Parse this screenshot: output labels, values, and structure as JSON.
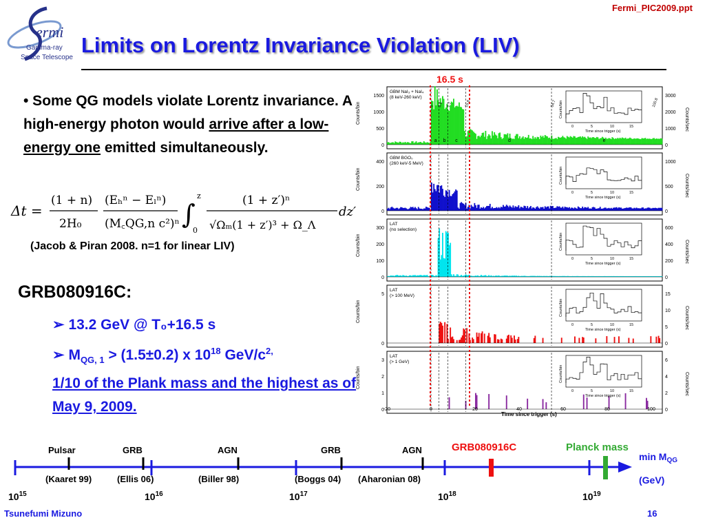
{
  "header": {
    "filename": "Fermi_PIC2009.ppt",
    "logo": {
      "name": "ermi",
      "line1": "Gamma-ray",
      "line2": "Space Telescope"
    },
    "title": "Limits on Lorentz Invariance Violation (LIV)"
  },
  "bullet": {
    "text_before": "• Some QG models violate Lorentz invariance. A high-energy photon would ",
    "underlined": "arrive after a low-energy one",
    "text_after": " emitted simultaneously."
  },
  "citation": "(Jacob & Piran 2008. n=1 for linear LIV)",
  "grb": {
    "heading": "GRB080916C:",
    "item1": "13.2 GeV @ T₀+16.5 s",
    "item2_m": "M",
    "item2_sub": "QG, 1",
    "item2_mid": " > (1.5±0.2) x 10",
    "item2_exp": "18",
    "item2_unit": " GeV/c",
    "item2_unit_exp": "2,",
    "item2_underlined": "1/10 of the Plank mass and the highest as of May 9, 2009."
  },
  "lightcurve": {
    "delay_label": "16.5 s",
    "xlabel": "Time since trigger (s)",
    "xticks": [
      "-20",
      "0",
      "20",
      "40",
      "60",
      "80",
      "100"
    ],
    "inset_xlabel": "Time since trigger (s)",
    "inset_xticks": [
      "0",
      "5",
      "10",
      "15"
    ],
    "ylabel_left": "Counts/bin",
    "ylabel_right": "Counts/sec",
    "panels": [
      {
        "label1": "GBM NaI₃ + NaI₄",
        "label2": "(8 keV-260 keV)",
        "color": "#22dd22",
        "yticks": [
          "0",
          "500",
          "1000",
          "1500"
        ],
        "rticks": [
          "0",
          "1000",
          "2000",
          "3000"
        ],
        "segments": [
          "a",
          "b",
          "c",
          "d",
          "e"
        ]
      },
      {
        "label1": "GBM BGO₀",
        "label2": "(260 keV-5 MeV)",
        "color": "#1010cc",
        "yticks": [
          "0",
          "200",
          "400"
        ],
        "rticks": [
          "0",
          "500",
          "1000"
        ]
      },
      {
        "label1": "LAT",
        "label2": "(no selection)",
        "color": "#00e5ee",
        "yticks": [
          "0",
          "100",
          "200",
          "300"
        ],
        "rticks": [
          "0",
          "200",
          "400",
          "600"
        ]
      },
      {
        "label1": "LAT",
        "label2": "(> 100 MeV)",
        "color": "#ee1010",
        "yticks": [
          "0",
          "5"
        ],
        "rticks": [
          "0",
          "5",
          "10",
          "15"
        ]
      },
      {
        "label1": "LAT",
        "label2": "(> 1 GeV)",
        "color": "#8a2aa0",
        "yticks": [
          "0",
          "1",
          "2",
          "3"
        ],
        "rticks": [
          "0",
          "2",
          "4",
          "6"
        ]
      }
    ],
    "inset_ylabels": [
      "Counts/bin",
      "Counts/bin",
      "Counts/bin",
      "Counts/bin",
      "Counts/bin"
    ],
    "panel1_inset_ticks": [
      "0",
      "100",
      "200",
      "300"
    ],
    "panel5_inset_ticks": [
      "0",
      "0.5",
      "1",
      "1.5"
    ],
    "segment_tags": [
      "0",
      "3.6",
      "7.7",
      "15.8",
      "54.7",
      "100.8"
    ]
  },
  "timeline": {
    "axis_label": "min M",
    "axis_sub": "QG",
    "unit": "(GeV)",
    "ticks": [
      {
        "base": "10",
        "exp": "15"
      },
      {
        "base": "10",
        "exp": "16"
      },
      {
        "base": "10",
        "exp": "17"
      },
      {
        "base": "10",
        "exp": "18"
      },
      {
        "base": "10",
        "exp": "19"
      }
    ],
    "sources": [
      {
        "type": "Pulsar",
        "ref": "(Kaaret 99)"
      },
      {
        "type": "GRB",
        "ref": "(Ellis 06)"
      },
      {
        "type": "AGN",
        "ref": "(Biller 98)"
      },
      {
        "type": "GRB",
        "ref": "(Boggs 04)"
      },
      {
        "type": "AGN",
        "ref": "(Aharonian 08)"
      }
    ],
    "grb_marker": "GRB080916C",
    "planck_marker": "Planck mass",
    "grb_color": "#ee1010",
    "planck_color": "#33aa33",
    "axis_color": "#1a1ae0"
  },
  "footer": {
    "author": "Tsunefumi Mizuno",
    "page": "16"
  }
}
